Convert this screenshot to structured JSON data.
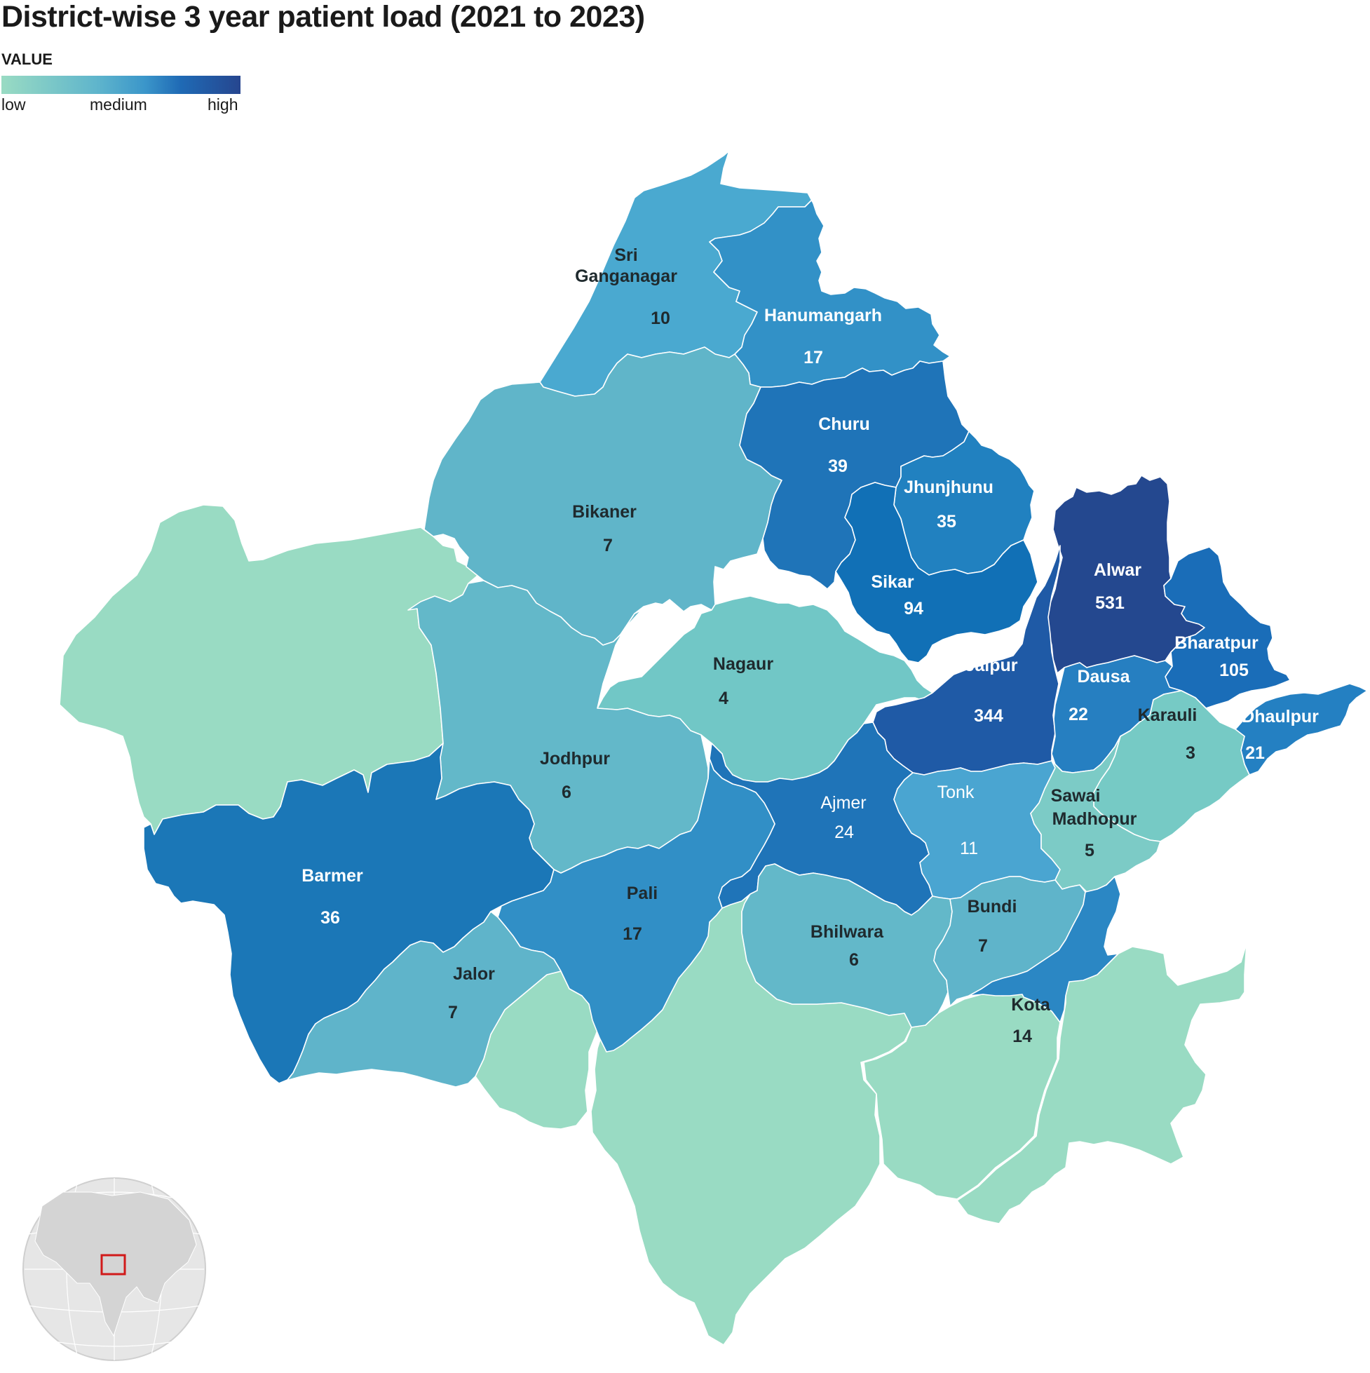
{
  "title": "District-wise 3 year patient load (2021 to 2023)",
  "legend": {
    "heading": "VALUE",
    "ticks": [
      "low",
      "medium",
      "high"
    ],
    "colors": {
      "low": "#99dbc3",
      "medium": "#5fb5cc",
      "high": "#26468f"
    }
  },
  "colors": {
    "nodata": "#99dbc3",
    "label_dark": "#1f2a2e",
    "label_light": "#ffffff",
    "inset_globe": "#e3e3e3",
    "inset_marker": "#d11a1a"
  },
  "chart_data": {
    "type": "choropleth",
    "region": "Rajasthan",
    "color_scale": "sequential low→high",
    "districts": [
      {
        "name": "Sri Ganganagar",
        "value": 10
      },
      {
        "name": "Hanumangarh",
        "value": 17
      },
      {
        "name": "Churu",
        "value": 39
      },
      {
        "name": "Jhunjhunu",
        "value": 35
      },
      {
        "name": "Bikaner",
        "value": 7
      },
      {
        "name": "Sikar",
        "value": 94
      },
      {
        "name": "Alwar",
        "value": 531
      },
      {
        "name": "Bharatpur",
        "value": 105
      },
      {
        "name": "Nagaur",
        "value": 4
      },
      {
        "name": "Jaipur",
        "value": 344
      },
      {
        "name": "Dausa",
        "value": 22
      },
      {
        "name": "Karauli",
        "value": 3
      },
      {
        "name": "Dhaulpur",
        "value": 21
      },
      {
        "name": "Jodhpur",
        "value": 6
      },
      {
        "name": "Ajmer",
        "value": 24
      },
      {
        "name": "Tonk",
        "value": 11
      },
      {
        "name": "Sawai Madhopur",
        "value": 5
      },
      {
        "name": "Barmer",
        "value": 36
      },
      {
        "name": "Pali",
        "value": 17
      },
      {
        "name": "Bhilwara",
        "value": 6
      },
      {
        "name": "Bundi",
        "value": 7
      },
      {
        "name": "Jalor",
        "value": 7
      },
      {
        "name": "Kota",
        "value": 14
      }
    ]
  }
}
